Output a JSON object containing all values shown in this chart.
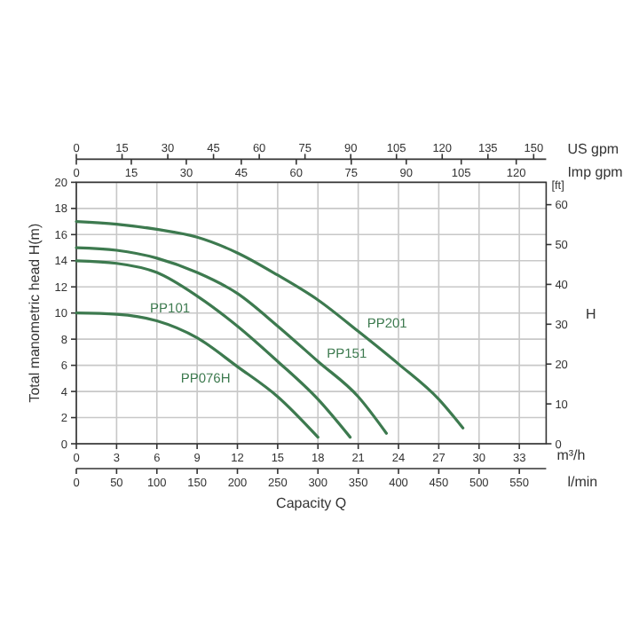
{
  "chart_data": {
    "type": "line",
    "xlabel": "Capacity Q",
    "ylabel": "Total manometric head H(m)",
    "y2label": "H",
    "x2label": "US gpm",
    "annotations": [
      "m³/h",
      "[ft]",
      "Imp gpm",
      "0",
      "15",
      "30",
      "45",
      "60",
      "75",
      "90",
      "105",
      "120",
      "l/min",
      "0",
      "50",
      "100",
      "150",
      "200",
      "250",
      "300",
      "350",
      "400",
      "450",
      "500",
      "550"
    ],
    "xlim": [
      0,
      35
    ],
    "xticks": [
      0,
      3,
      6,
      9,
      12,
      15,
      18,
      21,
      24,
      27,
      30,
      33
    ],
    "ylim": [
      0,
      20
    ],
    "yticks": [
      0,
      2,
      4,
      6,
      8,
      10,
      12,
      14,
      16,
      18,
      20
    ],
    "y2lim": [
      0,
      65.62
    ],
    "y2ticks": [
      0,
      10,
      20,
      30,
      40,
      50,
      60
    ],
    "x2lim": [
      0,
      154.1
    ],
    "x2ticks": [
      0,
      15,
      30,
      45,
      60,
      75,
      90,
      105,
      120,
      135,
      150
    ],
    "grid": true,
    "marker": "none",
    "line_style": "solid",
    "series": [
      {
        "name": "PP201",
        "color": "#3d7a4f",
        "x": [
          0,
          3,
          6,
          9,
          12,
          15,
          18,
          21,
          24,
          27,
          28.8
        ],
        "values": [
          17,
          16.8,
          16.4,
          15.8,
          14.6,
          12.9,
          11,
          8.6,
          6.1,
          3.4,
          1.2
        ]
      },
      {
        "name": "PP151",
        "color": "#3d7a4f",
        "x": [
          0,
          3,
          6,
          9,
          12,
          15,
          18,
          21,
          23.1
        ],
        "values": [
          15,
          14.8,
          14.2,
          13.1,
          11.5,
          9.0,
          6.3,
          3.6,
          0.8
        ]
      },
      {
        "name": "PP101",
        "color": "#3d7a4f",
        "x": [
          0,
          3,
          6,
          9,
          12,
          15,
          18,
          20.4
        ],
        "values": [
          14,
          13.8,
          13.1,
          11.3,
          9.0,
          6.3,
          3.4,
          0.5
        ]
      },
      {
        "name": "PP076H",
        "color": "#3d7a4f",
        "x": [
          0,
          3,
          6,
          9,
          12,
          15,
          18
        ],
        "values": [
          10,
          9.9,
          9.4,
          8.1,
          5.9,
          3.6,
          0.5
        ]
      }
    ]
  }
}
